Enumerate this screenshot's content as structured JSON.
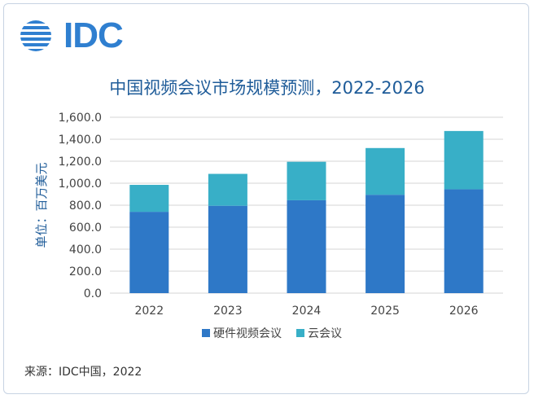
{
  "logo": {
    "text": "IDC"
  },
  "source": "来源：IDC中国，2022",
  "colors": {
    "hardware": "#2e78c7",
    "cloud": "#38afc7",
    "grid": "#d6d6d6",
    "title": "#1f5c99",
    "logo": "#2f7fd0"
  },
  "chart_data": {
    "type": "bar",
    "stacked": true,
    "title": "中国视频会议市场规模预测，2022-2026",
    "ylabel": "单位：百万美元",
    "xlabel": "",
    "ylim": [
      0,
      1600
    ],
    "yticks": [
      "0.0",
      "200.0",
      "400.0",
      "600.0",
      "800.0",
      "1,000.0",
      "1,200.0",
      "1,400.0",
      "1,600.0"
    ],
    "categories": [
      "2022",
      "2023",
      "2024",
      "2025",
      "2026"
    ],
    "series": [
      {
        "name": "硬件视频会议",
        "values": [
          740,
          795,
          845,
          895,
          945
        ]
      },
      {
        "name": "云会议",
        "values": [
          245,
          290,
          350,
          425,
          530
        ]
      }
    ],
    "grid": true,
    "legend": "bottom"
  }
}
